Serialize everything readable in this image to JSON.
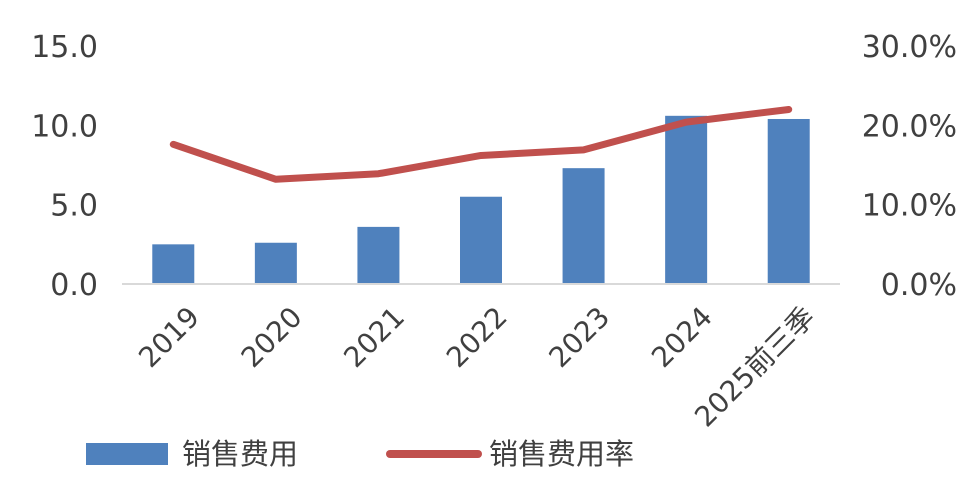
{
  "chart_data": {
    "type": "bar",
    "categories": [
      "2019",
      "2020",
      "2021",
      "2022",
      "2023",
      "2024",
      "2025前三季"
    ],
    "series": [
      {
        "name": "销售费用",
        "type": "bar",
        "axis": "left",
        "color": "#4F81BD",
        "values": [
          2.5,
          2.6,
          3.6,
          5.5,
          7.3,
          10.6,
          10.4
        ]
      },
      {
        "name": "销售费用率",
        "type": "line",
        "axis": "right",
        "color": "#C0504D",
        "values": [
          17.6,
          13.2,
          13.9,
          16.2,
          16.9,
          20.4,
          22.0
        ]
      }
    ],
    "y_left": {
      "min": 0,
      "max": 15,
      "ticks": [
        "0.0",
        "5.0",
        "10.0",
        "15.0"
      ]
    },
    "y_right": {
      "min": 0,
      "max": 30,
      "ticks": [
        "0.0%",
        "10.0%",
        "20.0%",
        "30.0%"
      ]
    },
    "grid": false,
    "legend": "bottom"
  }
}
